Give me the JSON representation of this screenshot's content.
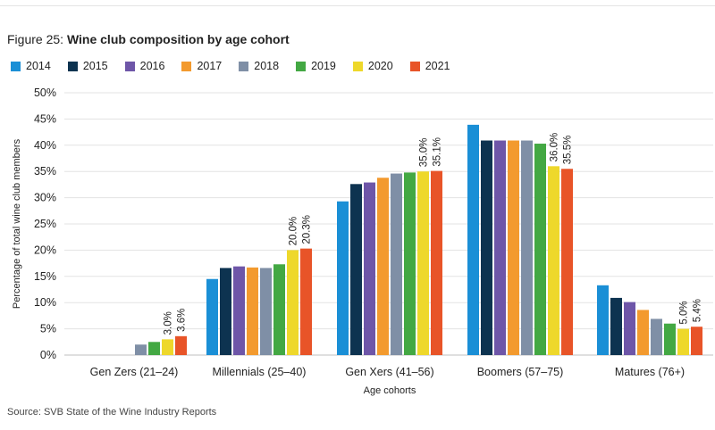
{
  "figure_label": "Figure 25:",
  "title": "Wine club composition by age cohort",
  "source": "Source: SVB State of the Wine Industry Reports",
  "chart_data": {
    "type": "bar",
    "title": "Wine club composition by age cohort",
    "xlabel": "Age cohorts",
    "ylabel": "Percentage of total wine club members",
    "ylim": [
      0,
      50
    ],
    "yticks": [
      "0%",
      "5%",
      "10%",
      "15%",
      "20%",
      "25%",
      "30%",
      "35%",
      "40%",
      "45%",
      "50%"
    ],
    "grid": true,
    "legend_position": "top",
    "categories": [
      "Gen Zers (21–24)",
      "Millennials (25–40)",
      "Gen Xers (41–56)",
      "Boomers (57–75)",
      "Matures (76+)"
    ],
    "series": [
      {
        "name": "2014",
        "color": "#1a8fd6",
        "values": [
          0,
          14.5,
          29.3,
          43.9,
          13.3
        ]
      },
      {
        "name": "2015",
        "color": "#0d3350",
        "values": [
          0,
          16.6,
          32.6,
          40.9,
          10.9
        ]
      },
      {
        "name": "2016",
        "color": "#6e56a8",
        "values": [
          0,
          16.9,
          32.9,
          40.9,
          10.1
        ]
      },
      {
        "name": "2017",
        "color": "#f39a2e",
        "values": [
          0,
          16.7,
          33.8,
          40.9,
          8.6
        ]
      },
      {
        "name": "2018",
        "color": "#7f8fa6",
        "values": [
          2.0,
          16.6,
          34.6,
          40.9,
          6.9
        ]
      },
      {
        "name": "2019",
        "color": "#43a843",
        "values": [
          2.5,
          17.3,
          34.8,
          40.3,
          6.0
        ]
      },
      {
        "name": "2020",
        "color": "#eed82b",
        "values": [
          3.0,
          20.0,
          35.0,
          36.0,
          5.0
        ]
      },
      {
        "name": "2021",
        "color": "#e85428",
        "values": [
          3.6,
          20.3,
          35.1,
          35.5,
          5.4
        ]
      }
    ],
    "data_labels": [
      {
        "series": "2020",
        "values": [
          "3.0%",
          "20.0%",
          "35.0%",
          "36.0%",
          "5.0%"
        ]
      },
      {
        "series": "2021",
        "values": [
          "3.6%",
          "20.3%",
          "35.1%",
          "35.5%",
          "5.4%"
        ]
      }
    ]
  }
}
